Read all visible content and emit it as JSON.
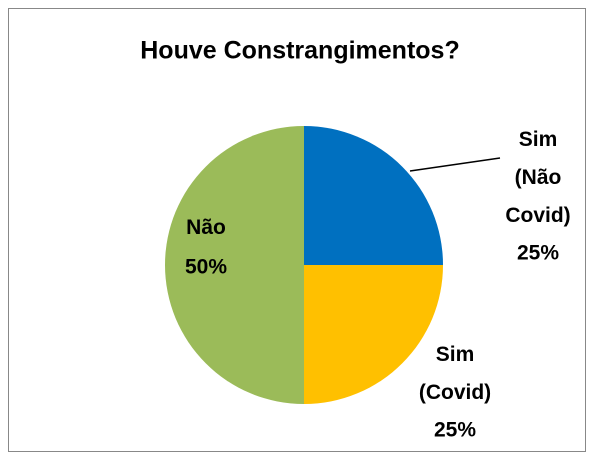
{
  "chart_data": {
    "type": "pie",
    "title": "Houve Constrangimentos?",
    "categories": [
      "Sim (Não Covid)",
      "Sim (Covid)",
      "Não"
    ],
    "values": [
      25,
      25,
      50
    ],
    "value_labels": [
      "25%",
      "25%",
      "50%"
    ],
    "colors": [
      "#0070c0",
      "#ffc000",
      "#9bbb59"
    ]
  }
}
